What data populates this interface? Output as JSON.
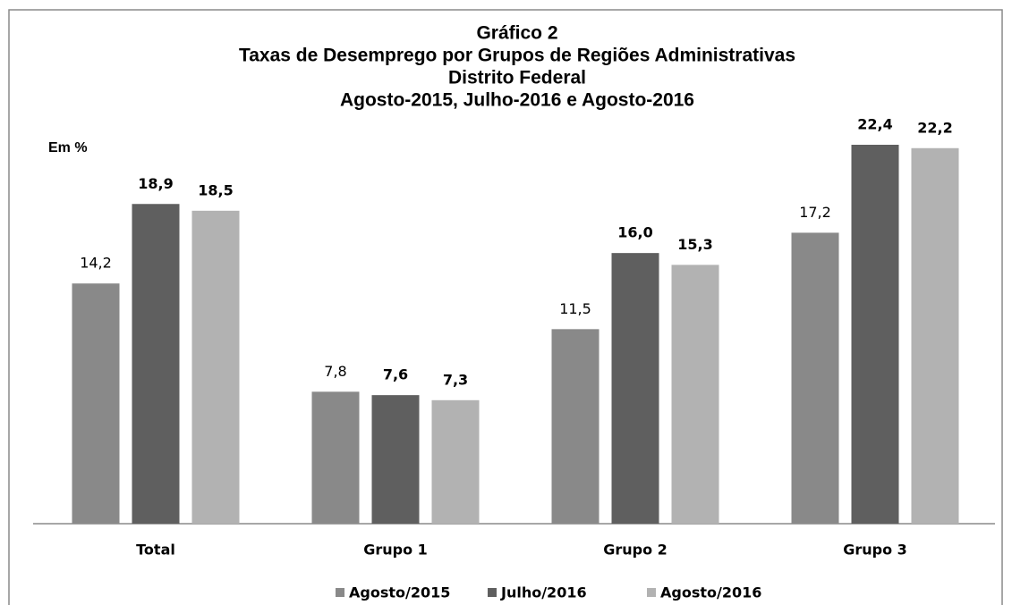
{
  "chart_data": {
    "type": "bar",
    "title": [
      "Gráfico 2",
      "Taxas de Desemprego por Grupos de Regiões Administrativas",
      "Distrito Federal",
      "Agosto-2015, Julho-2016 e Agosto-2016"
    ],
    "unit_label": "Em %",
    "categories": [
      "Total",
      "Grupo 1",
      "Grupo 2",
      "Grupo 3"
    ],
    "series": [
      {
        "name": "Agosto/2015",
        "color": "#898989",
        "values": [
          14.2,
          7.8,
          11.5,
          17.2
        ],
        "value_labels": [
          "14,2",
          "7,8",
          "11,5",
          "17,2"
        ]
      },
      {
        "name": "Julho/2016",
        "color": "#5f5f5f",
        "values": [
          18.9,
          7.6,
          16.0,
          22.4
        ],
        "value_labels": [
          "18,9",
          "7,6",
          "16,0",
          "22,4"
        ]
      },
      {
        "name": "Agosto/2016",
        "color": "#b2b2b2",
        "values": [
          18.5,
          7.3,
          15.3,
          22.2
        ],
        "value_labels": [
          "18,5",
          "7,3",
          "15,3",
          "22,2"
        ]
      }
    ],
    "legend": "bottom"
  }
}
